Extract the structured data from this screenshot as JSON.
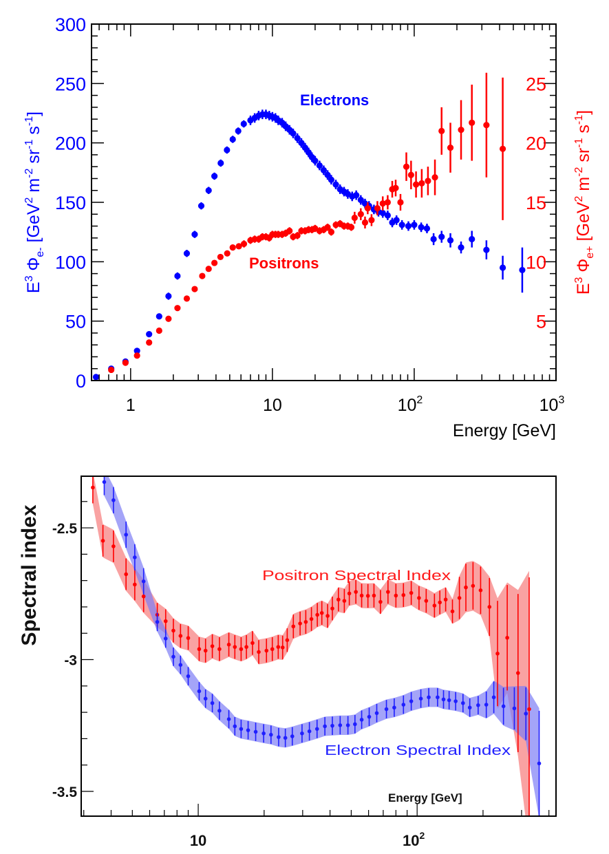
{
  "chart_data": [
    {
      "type": "scatter",
      "xlabel": "Energy [GeV]",
      "ylabel": "E³ Φe- [GeV² m⁻² sr⁻¹ s⁻¹]",
      "ylabel_parts": {
        "pre": "E",
        "sup1": "3",
        "phi": " Φ",
        "sub": "e-",
        "unit": " [GeV",
        "sup2": "2",
        "m": " m",
        "sup3": "-2",
        "sr": " sr",
        "sup4": "-1",
        "s": " s",
        "sup5": "-1",
        "close": "]"
      },
      "y2label": "E³ Φe+ [GeV² m⁻² sr⁻¹ s⁻¹]",
      "y2label_parts": {
        "pre": "E",
        "sup1": "3",
        "phi": " Φ",
        "sub": "e+",
        "unit": " [GeV",
        "sup2": "2",
        "m": " m",
        "sup3": "-2",
        "sr": " sr",
        "sup4": "-1",
        "s": " s",
        "sup5": "-1",
        "close": "]"
      },
      "xscale": "log",
      "xlim": [
        0.53,
        1000
      ],
      "ylim": [
        0,
        300
      ],
      "y2lim": [
        0,
        30
      ],
      "xticks": [
        {
          "value": 1,
          "base": "1",
          "exp": ""
        },
        {
          "value": 10,
          "base": "10",
          "exp": ""
        },
        {
          "value": 100,
          "base": "10",
          "exp": "2"
        },
        {
          "value": 1000,
          "base": "10",
          "exp": "3"
        }
      ],
      "yticks": [
        "0",
        "50",
        "100",
        "150",
        "200",
        "250",
        "300"
      ],
      "y2ticks": [
        "5",
        "10",
        "15",
        "20",
        "25"
      ],
      "grid": false,
      "series": [
        {
          "name": "Electrons",
          "axis": "left",
          "color": "#0000ff",
          "x": [
            0.57,
            0.73,
            0.92,
            1.11,
            1.35,
            1.59,
            1.85,
            2.14,
            2.49,
            2.83,
            3.15,
            3.55,
            3.9,
            4.32,
            4.78,
            5.25,
            5.74,
            6.28,
            7,
            7.5,
            8,
            8.5,
            9,
            9.5,
            10,
            10.5,
            11,
            11.7,
            12.4,
            13.2,
            14,
            15,
            16,
            17,
            18,
            19,
            20,
            21.5,
            23,
            24.5,
            26,
            28,
            30,
            32,
            34,
            36.5,
            39,
            42,
            45,
            48,
            52,
            56,
            60,
            65,
            70,
            75,
            82,
            91,
            100,
            112,
            123,
            137,
            156,
            180,
            214,
            255,
            323,
            421,
            578
          ],
          "y": [
            3,
            10,
            16,
            25,
            39,
            54,
            71,
            88,
            107,
            123,
            147,
            160,
            172,
            183,
            194,
            203,
            210,
            216,
            219,
            221,
            223,
            224,
            224,
            223,
            222,
            221,
            219,
            217,
            214,
            211,
            208,
            204,
            200,
            196,
            192,
            188,
            185,
            181,
            177,
            173,
            169,
            165,
            161,
            159,
            157,
            155,
            156,
            152,
            149,
            147,
            144,
            142,
            141,
            139,
            133,
            135,
            131,
            130,
            131,
            129,
            128,
            119,
            121,
            118,
            112,
            119,
            110,
            95,
            93
          ],
          "err": [
            2,
            2,
            2,
            2,
            2,
            2,
            3,
            3,
            3,
            3,
            3,
            3,
            3,
            3,
            3,
            3,
            3,
            3,
            4,
            4,
            4,
            4,
            4,
            4,
            4,
            4,
            4,
            4,
            4,
            4,
            4,
            4,
            4,
            4,
            4,
            4,
            4,
            4,
            4,
            4,
            4,
            4,
            4,
            4,
            4,
            4,
            4,
            4,
            4,
            4,
            4,
            4,
            4,
            4,
            4,
            4,
            4,
            4,
            4,
            4,
            4,
            5,
            5,
            6,
            5,
            7,
            8,
            10,
            19
          ]
        },
        {
          "name": "Positrons",
          "axis": "right",
          "color": "#ff0000",
          "x": [
            0.73,
            0.92,
            1.11,
            1.35,
            1.59,
            1.85,
            2.14,
            2.49,
            2.83,
            3.2,
            3.55,
            3.9,
            4.3,
            4.8,
            5.25,
            5.8,
            6.3,
            7,
            7.5,
            8,
            8.5,
            9,
            9.5,
            10,
            10.5,
            11,
            11.7,
            12.4,
            13.2,
            14,
            15,
            16,
            17,
            18,
            19,
            20,
            21.5,
            23,
            24.5,
            26,
            28,
            30,
            32,
            34,
            36,
            38,
            42,
            45,
            47,
            50,
            55,
            60,
            65,
            70,
            74,
            80,
            88,
            95,
            103,
            113,
            125,
            140,
            156,
            180,
            214,
            255,
            323,
            421
          ],
          "y": [
            0.9,
            1.5,
            2.1,
            3.2,
            4.2,
            5.2,
            6.1,
            6.9,
            7.7,
            8.8,
            9.4,
            9.9,
            10.4,
            10.7,
            11.2,
            11.3,
            11.5,
            11.8,
            11.9,
            11.9,
            12.1,
            12.1,
            12.0,
            12.3,
            12.3,
            12.3,
            12.3,
            12.4,
            12.6,
            12.1,
            12.2,
            12.6,
            12.6,
            12.7,
            12.7,
            12.8,
            12.6,
            12.7,
            12.9,
            12.5,
            13.1,
            13.2,
            13.0,
            13.0,
            12.9,
            13.7,
            14.0,
            13.3,
            14.5,
            13.5,
            14.5,
            14.9,
            15.0,
            16.1,
            16.2,
            15.0,
            18.0,
            17.3,
            16.5,
            16.6,
            16.8,
            17.1,
            21.0,
            19.6,
            21.1,
            21.7,
            21.5,
            19.5
          ],
          "err": [
            0.2,
            0.2,
            0.2,
            0.2,
            0.2,
            0.2,
            0.2,
            0.2,
            0.2,
            0.2,
            0.2,
            0.2,
            0.2,
            0.2,
            0.2,
            0.2,
            0.3,
            0.3,
            0.3,
            0.3,
            0.3,
            0.3,
            0.3,
            0.3,
            0.3,
            0.3,
            0.3,
            0.3,
            0.3,
            0.3,
            0.3,
            0.3,
            0.3,
            0.3,
            0.3,
            0.3,
            0.3,
            0.3,
            0.3,
            0.3,
            0.3,
            0.3,
            0.3,
            0.3,
            0.3,
            0.5,
            0.5,
            0.5,
            0.5,
            0.5,
            0.6,
            0.6,
            0.6,
            0.7,
            0.7,
            0.7,
            1.2,
            1.2,
            1.1,
            1.2,
            1.2,
            1.5,
            2.0,
            2.1,
            2.5,
            3.2,
            4.4,
            6.0
          ]
        }
      ],
      "annotations": {
        "electrons": "Electrons",
        "positrons": "Positrons"
      }
    },
    {
      "type": "scatter",
      "xlabel": "Energy [GeV]",
      "ylabel": "Spectral index",
      "xscale": "log",
      "xlim": [
        2.92,
        431
      ],
      "ylim": [
        -3.594,
        -2.304
      ],
      "xticks": [
        {
          "value": 10,
          "base": "10",
          "exp": ""
        },
        {
          "value": 100,
          "base": "10",
          "exp": "2"
        }
      ],
      "yticks": [
        {
          "value": -2.5,
          "label": "-2.5"
        },
        {
          "value": -3,
          "label": "-3"
        },
        {
          "value": -3.5,
          "label": "-3.5"
        }
      ],
      "grid": false,
      "series": [
        {
          "name": "Positron Spectral Index",
          "color": "#ff0000",
          "band_color": "#f77a7a",
          "x": [
            3.3,
            3.67,
            4.1,
            4.68,
            5.13,
            5.63,
            6.5,
            7.1,
            7.7,
            8.3,
            9.0,
            10.1,
            10.8,
            11.6,
            12.5,
            13.8,
            14.7,
            15.7,
            16.6,
            17.7,
            18.9,
            20.5,
            21.8,
            23.2,
            24.3,
            25.5,
            27.2,
            29.2,
            31,
            32.9,
            35,
            36.7,
            39,
            41,
            43.7,
            46.5,
            49,
            52.5,
            55.8,
            59.6,
            63.5,
            68,
            73.6,
            80,
            86.6,
            94,
            102,
            110,
            120,
            127,
            135,
            145,
            156,
            167,
            180,
            195,
            214,
            233,
            258,
            289,
            325
          ],
          "y": [
            -2.347,
            -2.549,
            -2.57,
            -2.676,
            -2.715,
            -2.76,
            -2.83,
            -2.854,
            -2.89,
            -2.91,
            -2.918,
            -2.96,
            -2.966,
            -2.949,
            -2.96,
            -2.943,
            -2.952,
            -2.96,
            -2.952,
            -2.937,
            -2.971,
            -2.966,
            -2.96,
            -2.952,
            -2.954,
            -2.926,
            -2.874,
            -2.863,
            -2.857,
            -2.846,
            -2.83,
            -2.823,
            -2.834,
            -2.806,
            -2.772,
            -2.777,
            -2.749,
            -2.743,
            -2.757,
            -2.758,
            -2.757,
            -2.781,
            -2.743,
            -2.757,
            -2.755,
            -2.747,
            -2.766,
            -2.777,
            -2.795,
            -2.783,
            -2.772,
            -2.817,
            -2.766,
            -2.726,
            -2.72,
            -2.737,
            -2.8,
            -2.977,
            -2.917,
            -3.051,
            -3.188
          ],
          "err": [
            0.06,
            0.06,
            0.06,
            0.06,
            0.06,
            0.06,
            0.045,
            0.045,
            0.045,
            0.045,
            0.045,
            0.045,
            0.045,
            0.045,
            0.045,
            0.045,
            0.045,
            0.045,
            0.045,
            0.045,
            0.045,
            0.045,
            0.045,
            0.045,
            0.045,
            0.045,
            0.045,
            0.045,
            0.045,
            0.045,
            0.045,
            0.045,
            0.045,
            0.045,
            0.045,
            0.045,
            0.045,
            0.045,
            0.045,
            0.045,
            0.045,
            0.045,
            0.045,
            0.045,
            0.045,
            0.045,
            0.045,
            0.045,
            0.045,
            0.045,
            0.045,
            0.045,
            0.08,
            0.09,
            0.09,
            0.09,
            0.11,
            0.2,
            0.2,
            0.3,
            0.5
          ]
        },
        {
          "name": "Electron Spectral Index",
          "color": "#1f1fff",
          "band_color": "#7d7df5",
          "x": [
            3.72,
            4.1,
            4.68,
            5.13,
            5.63,
            6.5,
            7.1,
            7.7,
            8.3,
            9.0,
            10.1,
            10.8,
            11.6,
            12.5,
            13.8,
            14.7,
            15.7,
            16.9,
            18.3,
            19.9,
            21.5,
            23.3,
            25,
            26.9,
            29.8,
            32.2,
            34.9,
            37.9,
            41,
            44.5,
            48.3,
            52,
            55.8,
            60.4,
            65.4,
            72.4,
            78.6,
            86.6,
            94,
            104,
            113,
            124,
            132,
            140,
            150,
            162,
            174,
            190,
            207,
            224,
            248,
            278,
            314,
            361
          ],
          "y": [
            -2.326,
            -2.395,
            -2.526,
            -2.612,
            -2.703,
            -2.857,
            -2.92,
            -2.989,
            -3.02,
            -3.063,
            -3.12,
            -3.148,
            -3.165,
            -3.194,
            -3.226,
            -3.253,
            -3.263,
            -3.268,
            -3.274,
            -3.28,
            -3.285,
            -3.294,
            -3.297,
            -3.291,
            -3.28,
            -3.272,
            -3.263,
            -3.253,
            -3.251,
            -3.249,
            -3.249,
            -3.245,
            -3.228,
            -3.217,
            -3.203,
            -3.188,
            -3.182,
            -3.171,
            -3.158,
            -3.148,
            -3.143,
            -3.143,
            -3.151,
            -3.154,
            -3.158,
            -3.165,
            -3.182,
            -3.173,
            -3.171,
            -3.143,
            -3.177,
            -3.185,
            -3.205,
            -3.394
          ],
          "err": [
            0.05,
            0.05,
            0.05,
            0.05,
            0.05,
            0.035,
            0.035,
            0.035,
            0.035,
            0.035,
            0.035,
            0.035,
            0.035,
            0.035,
            0.035,
            0.035,
            0.035,
            0.035,
            0.035,
            0.035,
            0.035,
            0.035,
            0.035,
            0.035,
            0.035,
            0.035,
            0.035,
            0.035,
            0.035,
            0.035,
            0.035,
            0.035,
            0.035,
            0.035,
            0.035,
            0.035,
            0.035,
            0.035,
            0.035,
            0.035,
            0.035,
            0.035,
            0.035,
            0.035,
            0.035,
            0.035,
            0.035,
            0.035,
            0.05,
            0.06,
            0.07,
            0.08,
            0.1,
            0.2
          ]
        }
      ],
      "annotations": {
        "positron": "Positron Spectral Index",
        "electron": "Electron Spectral Index",
        "energy": "Energy [GeV]"
      }
    }
  ]
}
